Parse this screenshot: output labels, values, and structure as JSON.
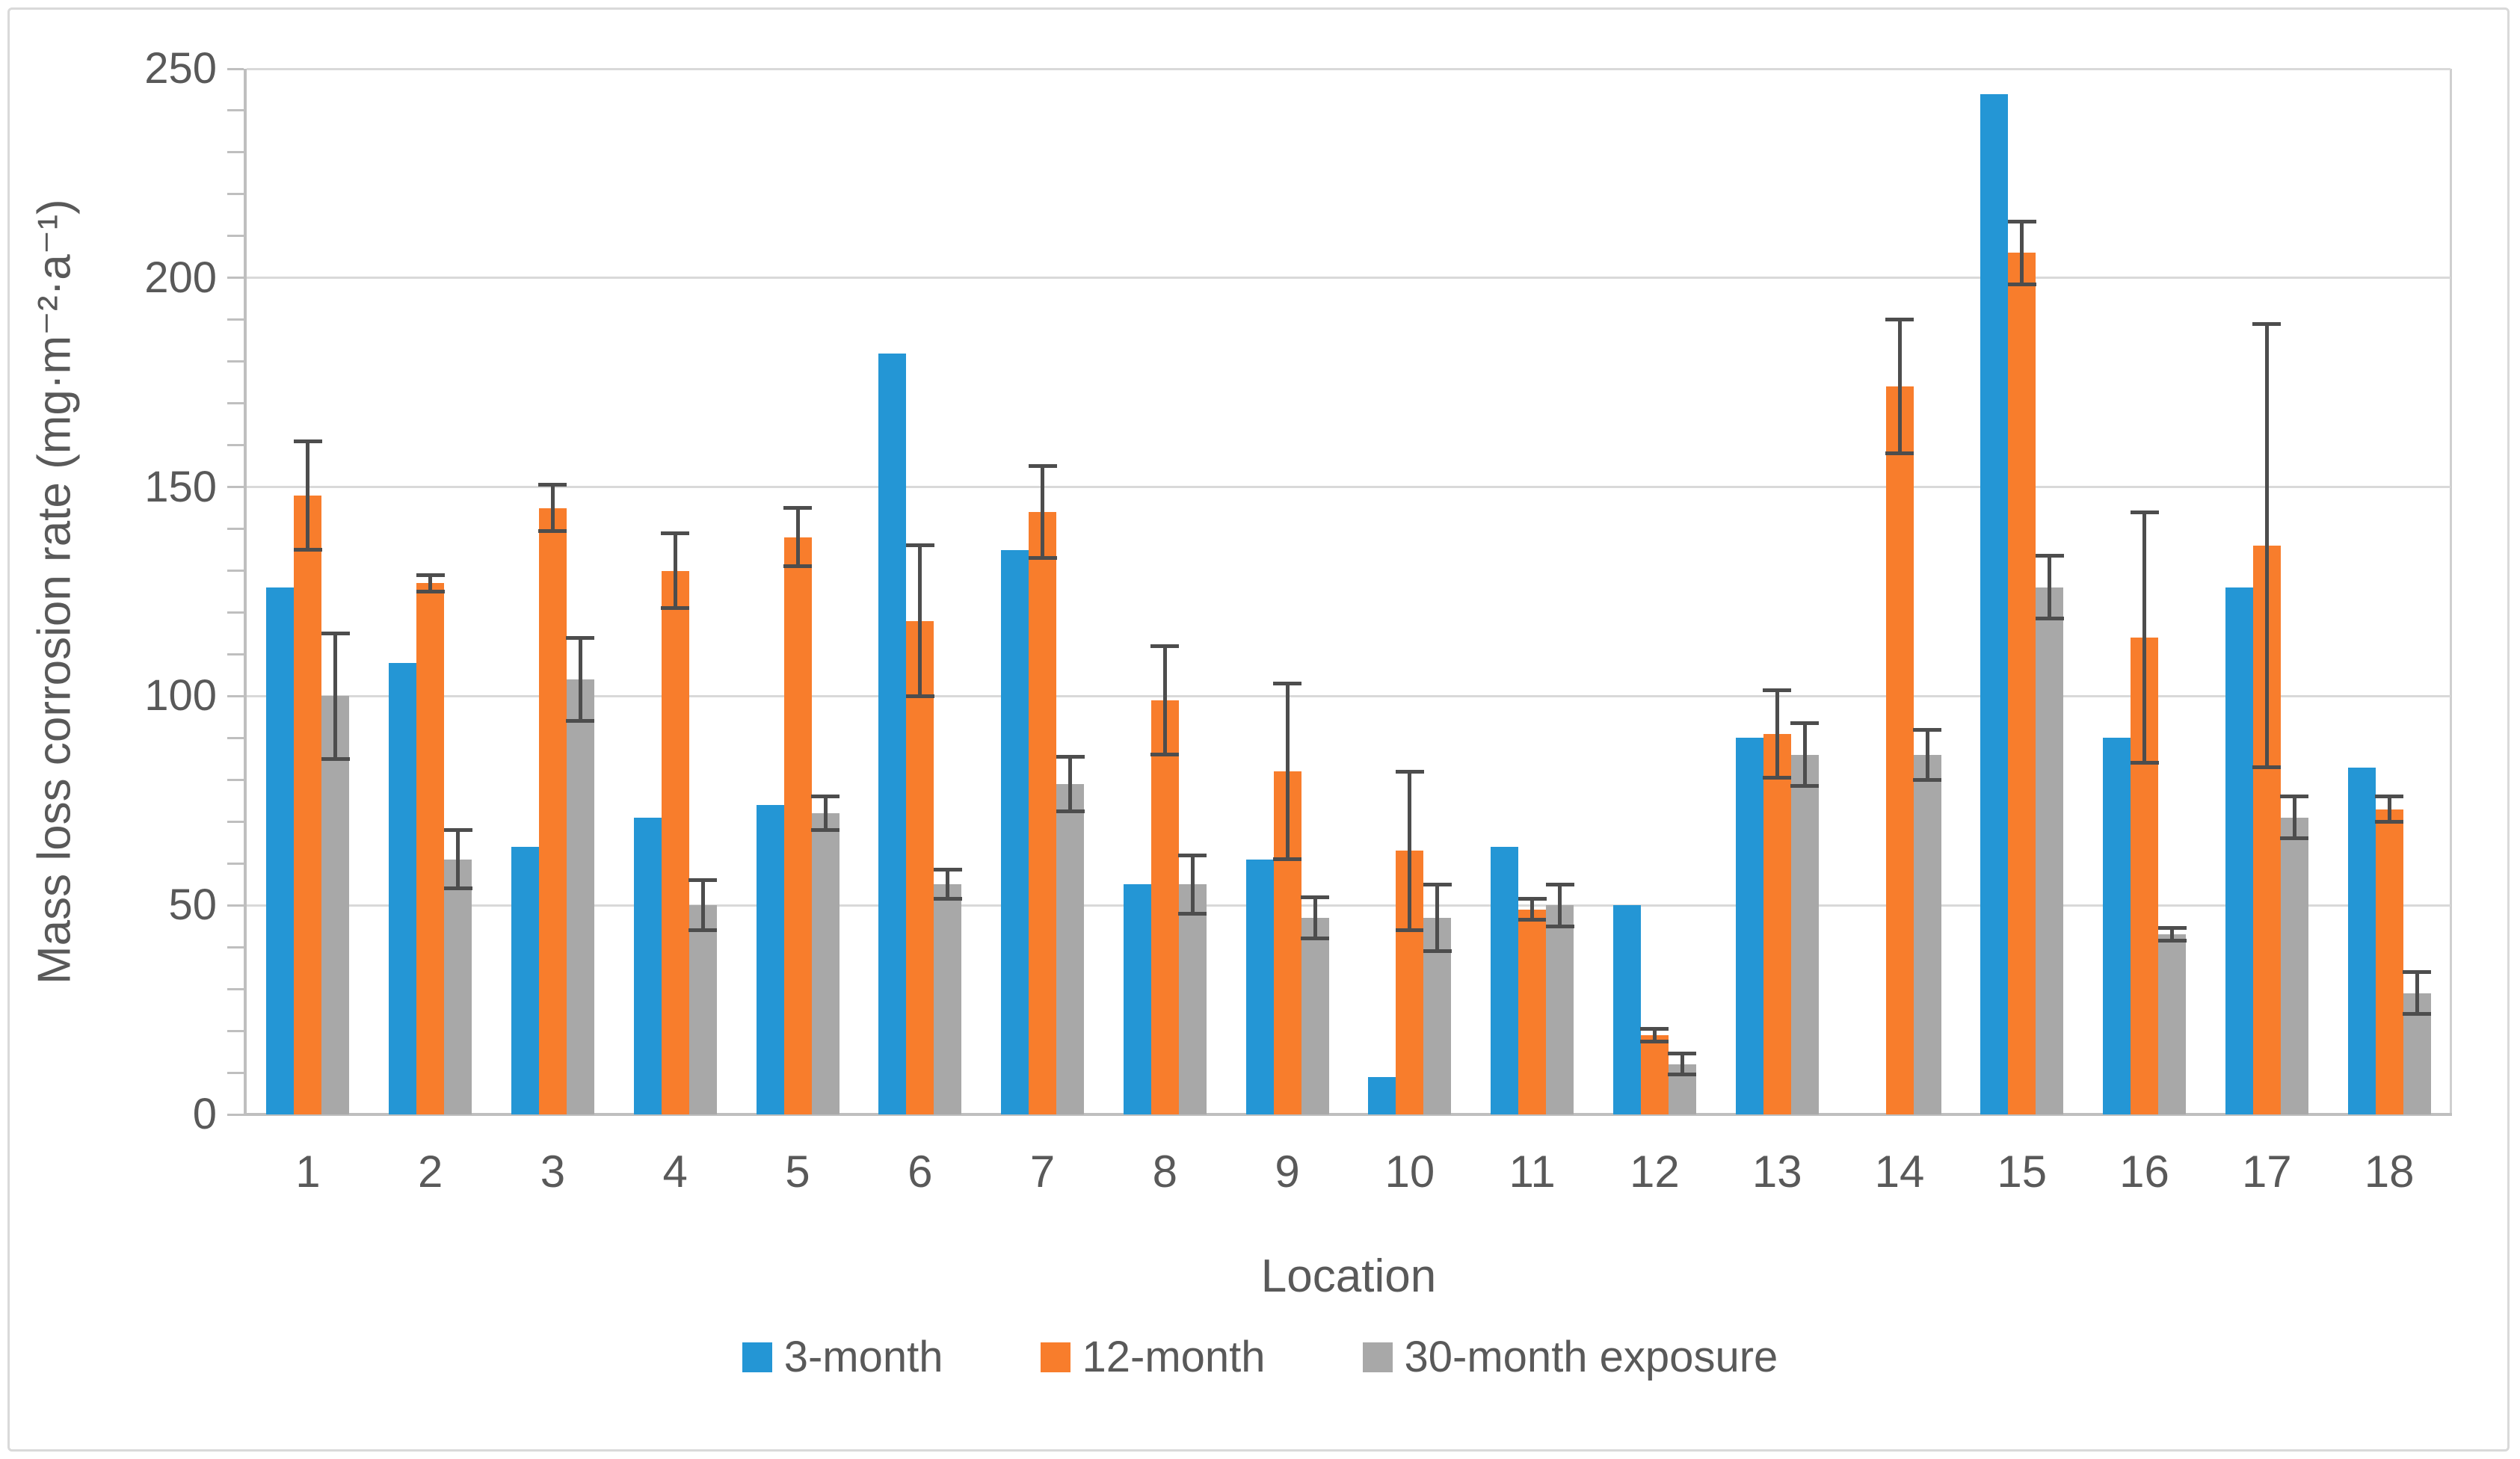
{
  "chart_data": {
    "type": "bar",
    "title": "",
    "xlabel": "Location",
    "ylabel": "Mass loss corrosion rate (mg·m⁻²·a⁻¹)",
    "ylim": [
      0,
      250
    ],
    "grid": "horizontal",
    "legend_position": "bottom",
    "y_axis": {
      "min": 0,
      "max": 250,
      "major_step": 50,
      "minor_step": 10,
      "tick_labels": [
        "0",
        "50",
        "100",
        "150",
        "200",
        "250"
      ]
    },
    "categories": [
      "1",
      "2",
      "3",
      "4",
      "5",
      "6",
      "7",
      "8",
      "9",
      "10",
      "11",
      "12",
      "13",
      "14",
      "15",
      "16",
      "17",
      "18"
    ],
    "series": [
      {
        "name": "3-month",
        "color": "#2496d5",
        "values": [
          126,
          108,
          64,
          71,
          74,
          182,
          135,
          55,
          61,
          9,
          64,
          50,
          90,
          null,
          244,
          90,
          126,
          83
        ],
        "errors": null
      },
      {
        "name": "12-month",
        "color": "#f87d2c",
        "values": [
          148,
          127,
          145,
          130,
          138,
          118,
          144,
          99,
          82,
          63,
          49,
          19,
          91,
          174,
          206,
          114,
          136,
          73
        ],
        "errors": [
          13,
          2,
          5.5,
          9,
          7,
          18,
          11,
          13,
          21,
          19,
          2.5,
          1.5,
          10.5,
          16,
          7.5,
          30,
          53,
          3
        ]
      },
      {
        "name": "30-month exposure",
        "color": "#a8a8a8",
        "values": [
          100,
          61,
          104,
          50,
          72,
          55,
          79,
          55,
          47,
          47,
          50,
          12,
          86,
          86,
          126,
          43,
          71,
          29
        ],
        "errors": [
          15,
          7,
          10,
          6,
          4,
          3.5,
          6.5,
          7,
          5,
          8,
          5,
          2.5,
          7.5,
          6,
          7.5,
          1.5,
          5,
          5
        ]
      }
    ],
    "colors": {
      "error_bar": "#4d4d4d",
      "gridline": "#d9d9d9",
      "axis_line": "#bfbfbf",
      "text": "#595959"
    }
  }
}
